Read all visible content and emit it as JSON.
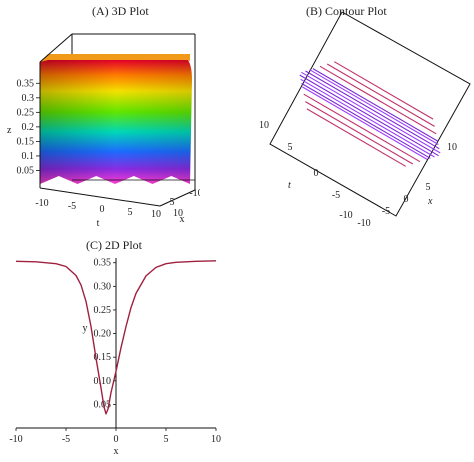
{
  "panel_a": {
    "title": "(A) 3D Plot"
  },
  "panel_b": {
    "title": "(B) Contour Plot"
  },
  "panel_c": {
    "title": "(C) 2D Plot"
  },
  "colors": {
    "curve": "#a02040",
    "contour_red": "#c0306a",
    "contour_purple": "#7a2ad0",
    "contour_violet": "#9b3cff"
  },
  "chart_data": [
    {
      "type": "surface",
      "title": "(A) 3D Plot",
      "xlabel": "x",
      "ylabel": "t",
      "zlabel": "z",
      "x_ticks": [
        "-10",
        "5",
        "10"
      ],
      "t_ticks": [
        "-10",
        "-5",
        "0",
        "5",
        "10"
      ],
      "z_ticks": [
        "0.35",
        "0.3",
        "0.25",
        "0.2",
        "0.15",
        "0.1",
        "0.05"
      ],
      "zlim": [
        0.03,
        0.36
      ],
      "colormap": "rainbow"
    },
    {
      "type": "contour",
      "title": "(B) Contour Plot",
      "xlabel": "x",
      "ylabel": "t",
      "t_ticks": [
        "10",
        "5",
        "0",
        "-5",
        "-10"
      ],
      "x_ticks": [
        "-10",
        "-5",
        "0",
        "5",
        "10"
      ],
      "levels": 14
    },
    {
      "type": "line",
      "title": "(C) 2D Plot",
      "xlabel": "x",
      "ylabel": "y",
      "xlim": [
        -10,
        10
      ],
      "ylim": [
        0,
        0.36
      ],
      "x_ticks": [
        "-10",
        "-5",
        "0",
        "5",
        "10"
      ],
      "y_ticks": [
        "0.35",
        "0.30",
        "0.25",
        "0.20",
        "0.15",
        "0.10",
        "0.05"
      ],
      "series": [
        {
          "x": [
            -10,
            -8,
            -6,
            -5,
            -4,
            -3.5,
            -3,
            -2.5,
            -2,
            -1.5,
            -1.2,
            -1,
            -0.8,
            -0.5,
            0,
            0.5,
            1,
            1.5,
            2,
            3,
            4,
            5,
            6,
            8,
            10
          ],
          "y": [
            0.353,
            0.352,
            0.348,
            0.342,
            0.323,
            0.303,
            0.268,
            0.215,
            0.148,
            0.085,
            0.045,
            0.03,
            0.04,
            0.075,
            0.12,
            0.17,
            0.215,
            0.255,
            0.285,
            0.322,
            0.34,
            0.348,
            0.351,
            0.353,
            0.354
          ]
        }
      ]
    }
  ]
}
